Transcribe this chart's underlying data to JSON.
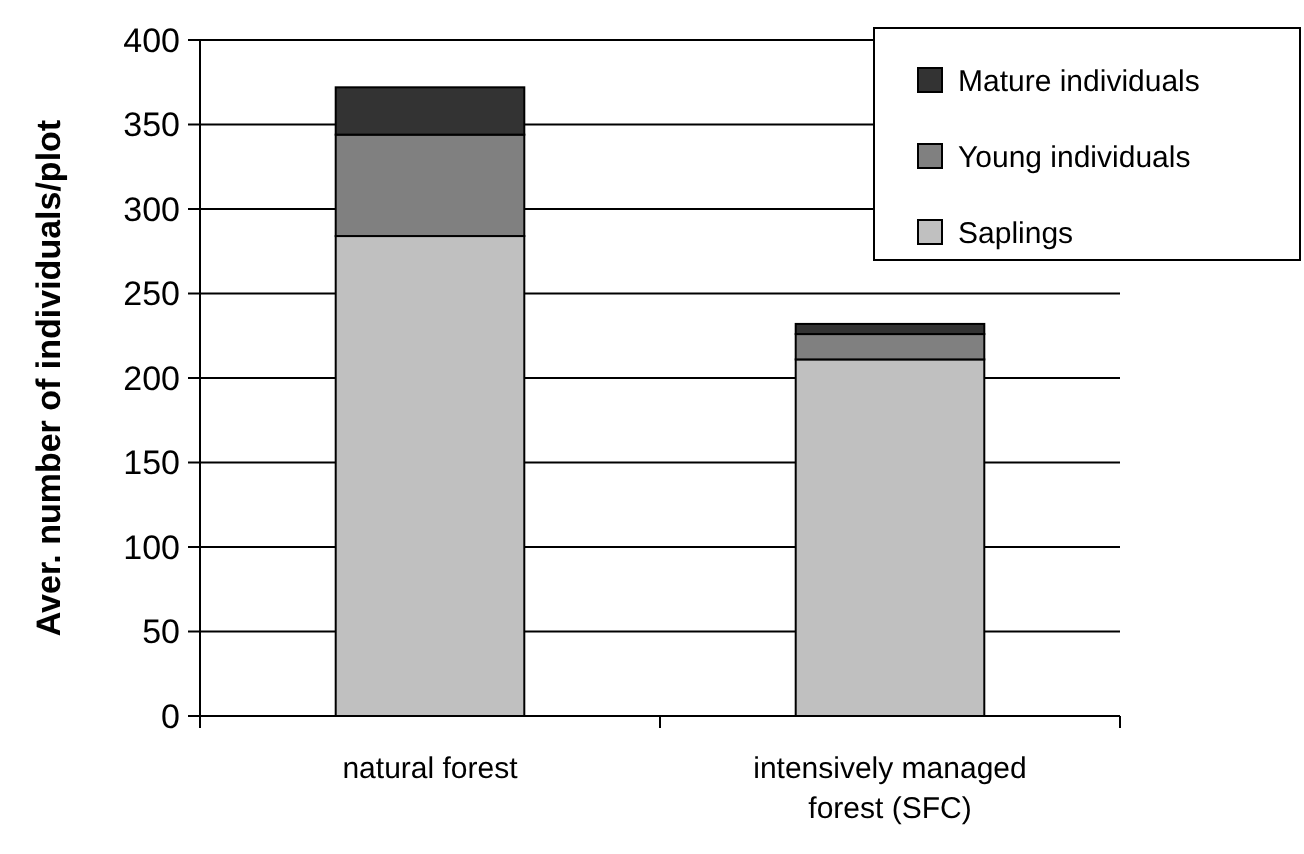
{
  "chart_data": {
    "type": "bar",
    "stacked": true,
    "ylabel": "Aver. number of individuals/plot",
    "categories": [
      "natural forest",
      "intensively managed forest (SFC)"
    ],
    "series": [
      {
        "name": "Saplings",
        "color": "#c0c0c0",
        "values": [
          284,
          211
        ]
      },
      {
        "name": "Young individuals",
        "color": "#808080",
        "values": [
          60,
          15
        ]
      },
      {
        "name": "Mature individuals",
        "color": "#333333",
        "values": [
          28,
          6
        ]
      }
    ],
    "ylim": [
      0,
      400
    ],
    "yticks": [
      0,
      50,
      100,
      150,
      200,
      250,
      300,
      350,
      400
    ],
    "grid": "y",
    "legend": "top right"
  }
}
